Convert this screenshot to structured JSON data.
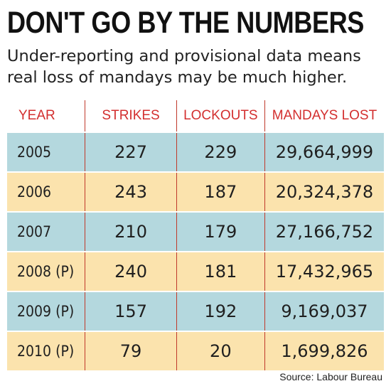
{
  "title": "DON'T GO BY THE NUMBERS",
  "subtitle": "Under-reporting and provisional data means real loss of mandays may be much higher.",
  "table": {
    "headers": [
      "YEAR",
      "STRIKES",
      "LOCKOUTS",
      "MANDAYS LOST"
    ],
    "rows": [
      {
        "year": "2005",
        "strikes": "227",
        "lockouts": "229",
        "mandays": "29,664,999"
      },
      {
        "year": "2006",
        "strikes": "243",
        "lockouts": "187",
        "mandays": "20,324,378"
      },
      {
        "year": "2007",
        "strikes": "210",
        "lockouts": "179",
        "mandays": "27,166,752"
      },
      {
        "year": "2008 (P)",
        "strikes": "240",
        "lockouts": "181",
        "mandays": "17,432,965"
      },
      {
        "year": "2009 (P)",
        "strikes": "157",
        "lockouts": "192",
        "mandays": "9,169,037"
      },
      {
        "year": "2010 (P)",
        "strikes": "79",
        "lockouts": "20",
        "mandays": "1,699,826"
      }
    ]
  },
  "colors": {
    "header_text": "#d32f2f",
    "row_blue": "#b4d8de",
    "row_yellow": "#fbe3ad"
  },
  "source": "Source: Labour Bureau"
}
